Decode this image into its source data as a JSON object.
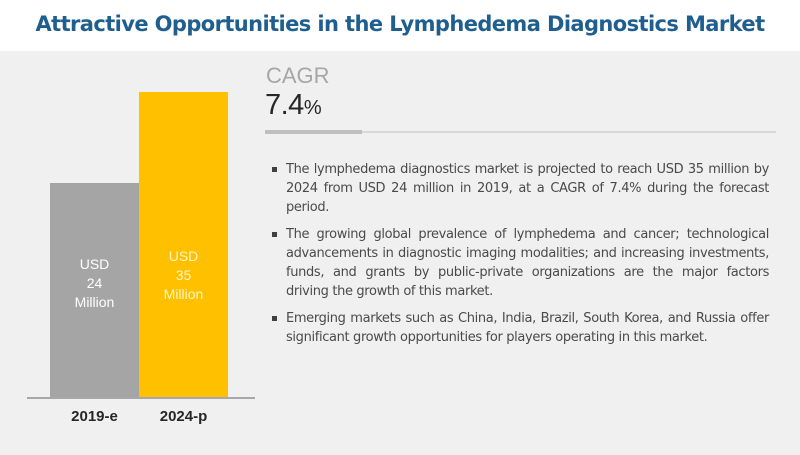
{
  "title": "Attractive Opportunities in the Lymphedema Diagnostics Market",
  "colors": {
    "title": "#1f5f8f",
    "panel_bg": "#f0f0f0",
    "bar_2019": "#a5a5a5",
    "bar_2024": "#ffc000"
  },
  "bars": [
    {
      "year": "2019-e",
      "line1": "USD",
      "line2": "24",
      "line3": "Million"
    },
    {
      "year": "2024-p",
      "line1": "USD",
      "line2": "35",
      "line3": "Million"
    }
  ],
  "cagr": {
    "label": "CAGR",
    "value": "7.4",
    "unit": "%"
  },
  "bullets": [
    "The lymphedema diagnostics market is projected to reach USD 35 million by 2024 from USD 24 million in 2019, at a CAGR of 7.4% during the forecast period.",
    "The growing global prevalence of lymphedema and cancer; technological advancements in diagnostic imaging modalities; and increasing investments, funds, and grants by public-private organizations are the major factors driving the growth of this market.",
    "Emerging markets such as China, India, Brazil, South Korea, and Russia offer significant growth opportunities for players operating in this market."
  ],
  "chart_data": {
    "type": "bar",
    "title": "Attractive Opportunities in the Lymphedema Diagnostics Market",
    "categories": [
      "2019-e",
      "2024-p"
    ],
    "values": [
      24,
      35
    ],
    "unit": "USD Million",
    "data_labels": [
      "USD 24 Million",
      "USD 35 Million"
    ],
    "xlabel": "",
    "ylabel": "",
    "grid": false,
    "legend": null,
    "annotations": [
      "CAGR 7.4%"
    ]
  }
}
